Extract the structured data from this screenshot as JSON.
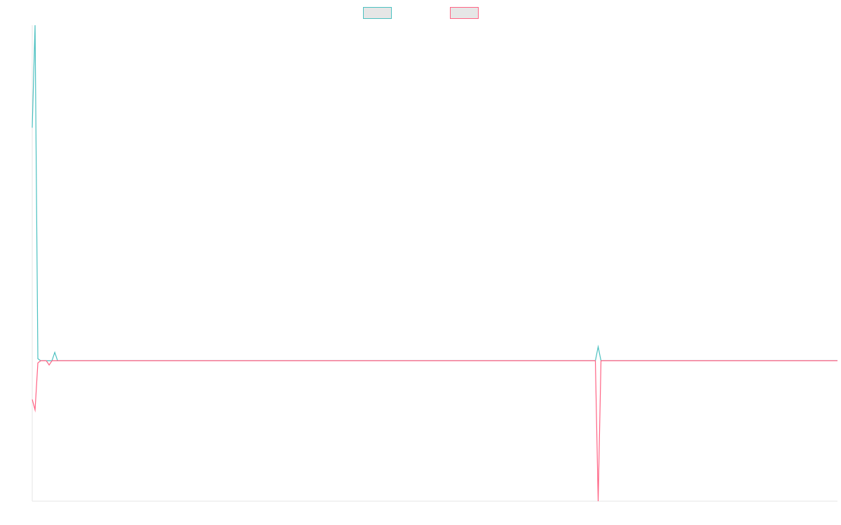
{
  "chart_data": {
    "type": "line",
    "title": "",
    "xlabel": "",
    "ylabel": "",
    "grid": false,
    "legend_placement": "top-center",
    "x": [
      0,
      1,
      2,
      3,
      4,
      5,
      6,
      7,
      8,
      9,
      10,
      11,
      200,
      201,
      202,
      203,
      204,
      205,
      286
    ],
    "xlim": [
      0,
      286
    ],
    "ylim": [
      -200,
      478
    ],
    "series": [
      {
        "color": "#4bc0c0",
        "fill": "#e6e6e6",
        "values": [
          332,
          478,
          3,
          0,
          0,
          0,
          0,
          0,
          12,
          0,
          0,
          0,
          0,
          20,
          0,
          0,
          0,
          0,
          0
        ]
      },
      {
        "color": "#ff6384",
        "fill": "#e6e6e6",
        "values": [
          -55,
          -70,
          -3,
          0,
          0,
          0,
          -6,
          0,
          0,
          0,
          0,
          0,
          0,
          -200,
          0,
          0,
          0,
          0,
          0
        ]
      }
    ]
  }
}
